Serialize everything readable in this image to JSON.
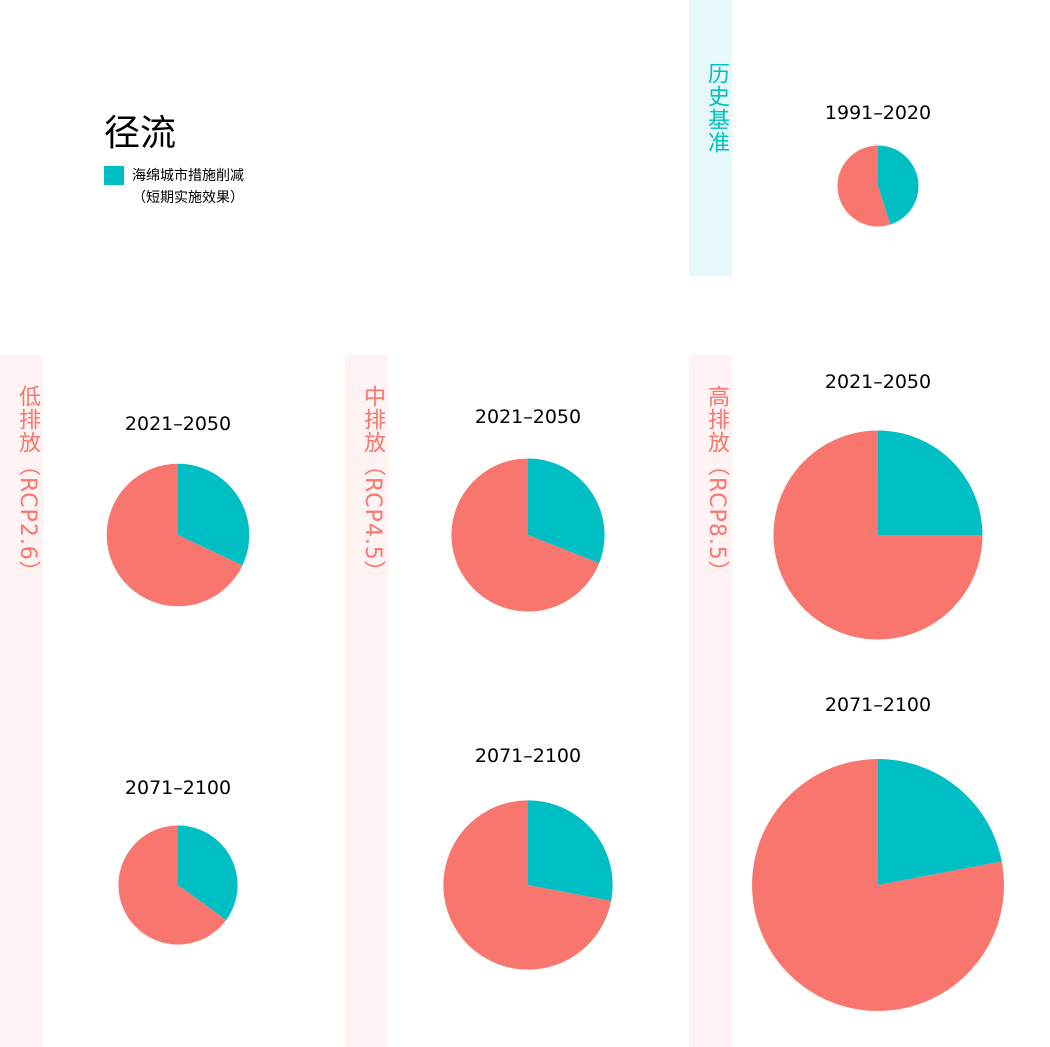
{
  "title": "径流",
  "legend": {
    "line1": "海绵城市措施削减",
    "line2": "（短期实施效果）",
    "color": "#00bfc4"
  },
  "colors": {
    "reduction": "#00bfc4",
    "remainder": "#f8766d"
  },
  "bands": {
    "historical": {
      "label": "历史基准",
      "text_color": "#00bfc4",
      "bg": "#e6f8f9"
    },
    "rcp26": {
      "label": "低排放（RCP2.6）",
      "text_color": "#f8766d",
      "bg": "#fff4f3"
    },
    "rcp45": {
      "label": "中排放（RCP4.5）",
      "text_color": "#f8766d",
      "bg": "#fff4f3"
    },
    "rcp85": {
      "label": "高排放（RCP8.5）",
      "text_color": "#f8766d",
      "bg": "#fff4f3"
    }
  },
  "chart_data": [
    {
      "type": "pie",
      "scenario": "历史基准",
      "title": "1991–2020",
      "reduction_share": 0.45,
      "relative_size": 1.0
    },
    {
      "type": "pie",
      "scenario": "低排放（RCP2.6）",
      "title": "2021–2050",
      "reduction_share": 0.32,
      "relative_size": 1.76
    },
    {
      "type": "pie",
      "scenario": "低排放（RCP2.6）",
      "title": "2071–2100",
      "reduction_share": 0.35,
      "relative_size": 1.47
    },
    {
      "type": "pie",
      "scenario": "中排放（RCP4.5）",
      "title": "2021–2050",
      "reduction_share": 0.31,
      "relative_size": 1.89
    },
    {
      "type": "pie",
      "scenario": "中排放（RCP4.5）",
      "title": "2071–2100",
      "reduction_share": 0.28,
      "relative_size": 2.09
    },
    {
      "type": "pie",
      "scenario": "高排放（RCP8.5）",
      "title": "2021–2050",
      "reduction_share": 0.25,
      "relative_size": 2.58
    },
    {
      "type": "pie",
      "scenario": "高排放（RCP8.5）",
      "title": "2071–2100",
      "reduction_share": 0.22,
      "relative_size": 3.11
    }
  ]
}
